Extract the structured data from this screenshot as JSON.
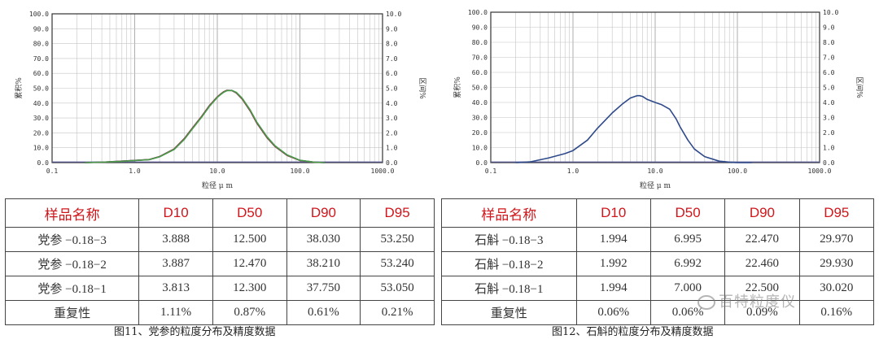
{
  "chart_data": [
    {
      "type": "line",
      "xscale": "log",
      "xlim": [
        0.1,
        1000.0
      ],
      "ylim_left": [
        0,
        100
      ],
      "ylim_right": [
        0,
        10
      ],
      "x_ticks": [
        "0.1",
        "1.0",
        "10.0",
        "100.0",
        "1000.0"
      ],
      "y_left_ticks": [
        "0.0",
        "10.0",
        "20.0",
        "30.0",
        "40.0",
        "50.0",
        "60.0",
        "70.0",
        "80.0",
        "90.0",
        "100.0"
      ],
      "y_right_ticks": [
        "0.0",
        "1.0",
        "2.0",
        "3.0",
        "4.0",
        "5.0",
        "6.0",
        "7.0",
        "8.0",
        "9.0",
        "10.0"
      ],
      "xlabel": "粒径 μ m",
      "ylabel_left": "累积%",
      "ylabel_right": "区间%",
      "grid": true,
      "series": [
        {
          "color": "#3a4fa0",
          "x": [
            0.25,
            0.4,
            0.7,
            1.0,
            1.5,
            2.0,
            3.0,
            4.0,
            5.0,
            6.5,
            8.0,
            10.0,
            11.0,
            12.0,
            13.0,
            15.0,
            17.0,
            20.0,
            25.0,
            30.0,
            40.0,
            50.0,
            70.0,
            100.0,
            150.0,
            200.0
          ],
          "y": [
            0.0,
            0.3,
            1.0,
            1.5,
            2.0,
            4.0,
            9.0,
            16.0,
            23.0,
            31.0,
            38.0,
            44.0,
            46.0,
            47.5,
            48.5,
            48.5,
            47.0,
            43.0,
            35.0,
            27.0,
            17.0,
            11.0,
            5.0,
            1.5,
            0.3,
            0.0
          ]
        },
        {
          "color": "#8a3a4a",
          "x": [
            0.25,
            0.4,
            0.7,
            1.0,
            1.5,
            2.0,
            3.0,
            4.0,
            5.0,
            6.5,
            8.0,
            10.0,
            11.0,
            12.0,
            13.0,
            15.0,
            17.0,
            20.0,
            25.0,
            30.0,
            40.0,
            50.0,
            70.0,
            100.0,
            150.0,
            200.0
          ],
          "y": [
            0.0,
            0.3,
            1.0,
            1.5,
            2.1,
            4.1,
            9.2,
            16.3,
            23.3,
            31.3,
            38.3,
            44.2,
            46.2,
            47.7,
            48.6,
            48.4,
            46.8,
            42.7,
            34.7,
            26.6,
            16.7,
            10.8,
            4.8,
            1.4,
            0.3,
            0.0
          ]
        },
        {
          "color": "#4a9a4a",
          "x": [
            0.25,
            0.4,
            0.7,
            1.0,
            1.5,
            2.0,
            3.0,
            4.0,
            5.0,
            6.5,
            8.0,
            10.0,
            11.0,
            12.0,
            13.0,
            15.0,
            17.0,
            20.0,
            25.0,
            30.0,
            40.0,
            50.0,
            70.0,
            100.0,
            150.0,
            200.0
          ],
          "y": [
            0.0,
            0.3,
            0.9,
            1.4,
            2.0,
            3.9,
            8.8,
            15.7,
            22.7,
            30.7,
            37.7,
            43.8,
            45.8,
            47.3,
            48.3,
            48.5,
            47.2,
            43.3,
            35.4,
            27.4,
            17.4,
            11.3,
            5.2,
            1.6,
            0.3,
            0.0
          ]
        }
      ]
    },
    {
      "type": "line",
      "xscale": "log",
      "xlim": [
        0.1,
        1000.0
      ],
      "ylim_left": [
        0,
        100
      ],
      "ylim_right": [
        0,
        10
      ],
      "x_ticks": [
        "0.1",
        "1.0",
        "10.0",
        "100.0",
        "1000.0"
      ],
      "y_left_ticks": [
        "0.0",
        "10.0",
        "20.0",
        "30.0",
        "40.0",
        "50.0",
        "60.0",
        "70.0",
        "80.0",
        "90.0",
        "100.0"
      ],
      "y_right_ticks": [
        "0.0",
        "1.0",
        "2.0",
        "3.0",
        "4.0",
        "5.0",
        "6.0",
        "7.0",
        "8.0",
        "9.0",
        "10.0"
      ],
      "xlabel": "粒径 μ m",
      "ylabel_left": "累积%",
      "ylabel_right": "区间%",
      "grid": true,
      "series": [
        {
          "color": "#2f4a8a",
          "x": [
            0.2,
            0.3,
            0.5,
            0.8,
            1.0,
            1.5,
            2.0,
            3.0,
            4.0,
            5.0,
            6.0,
            6.5,
            7.0,
            8.0,
            10.0,
            12.0,
            15.0,
            18.0,
            20.0,
            25.0,
            30.0,
            40.0,
            60.0,
            80.0,
            100.0,
            150.0
          ],
          "y": [
            0.0,
            0.5,
            3.0,
            6.0,
            8.0,
            15.0,
            23.0,
            33.0,
            39.0,
            43.0,
            44.5,
            44.5,
            44.0,
            42.0,
            40.0,
            38.5,
            35.5,
            29.0,
            24.0,
            15.0,
            9.0,
            4.0,
            1.0,
            0.3,
            0.0,
            0.0
          ]
        }
      ]
    }
  ],
  "left_table": {
    "headers": [
      "样品名称",
      "D10",
      "D50",
      "D90",
      "D95"
    ],
    "rows": [
      [
        "党参 −0.18−3",
        "3.888",
        "12.500",
        "38.030",
        "53.250"
      ],
      [
        "党参 −0.18−2",
        "3.887",
        "12.470",
        "38.210",
        "53.240"
      ],
      [
        "党参 −0.18−1",
        "3.813",
        "12.300",
        "37.750",
        "53.050"
      ],
      [
        "重复性",
        "1.11%",
        "0.87%",
        "0.61%",
        "0.21%"
      ]
    ]
  },
  "right_table": {
    "headers": [
      "样品名称",
      "D10",
      "D50",
      "D90",
      "D95"
    ],
    "rows": [
      [
        "石斛 −0.18−3",
        "1.994",
        "6.995",
        "22.470",
        "29.970"
      ],
      [
        "石斛 −0.18−2",
        "1.992",
        "6.992",
        "22.460",
        "29.930"
      ],
      [
        "石斛 −0.18−1",
        "1.994",
        "7.000",
        "22.500",
        "30.020"
      ],
      [
        "重复性",
        "0.06%",
        "0.06%",
        "0.09%",
        "0.16%"
      ]
    ]
  },
  "captions": {
    "left": "图11、党参的粒度分布及精度数据",
    "right": "图12、石斛的粒度分布及精度数据"
  },
  "watermark": "百特粒度仪",
  "colors": {
    "header_red": "#d0161b",
    "grid": "#bbbbbb"
  }
}
